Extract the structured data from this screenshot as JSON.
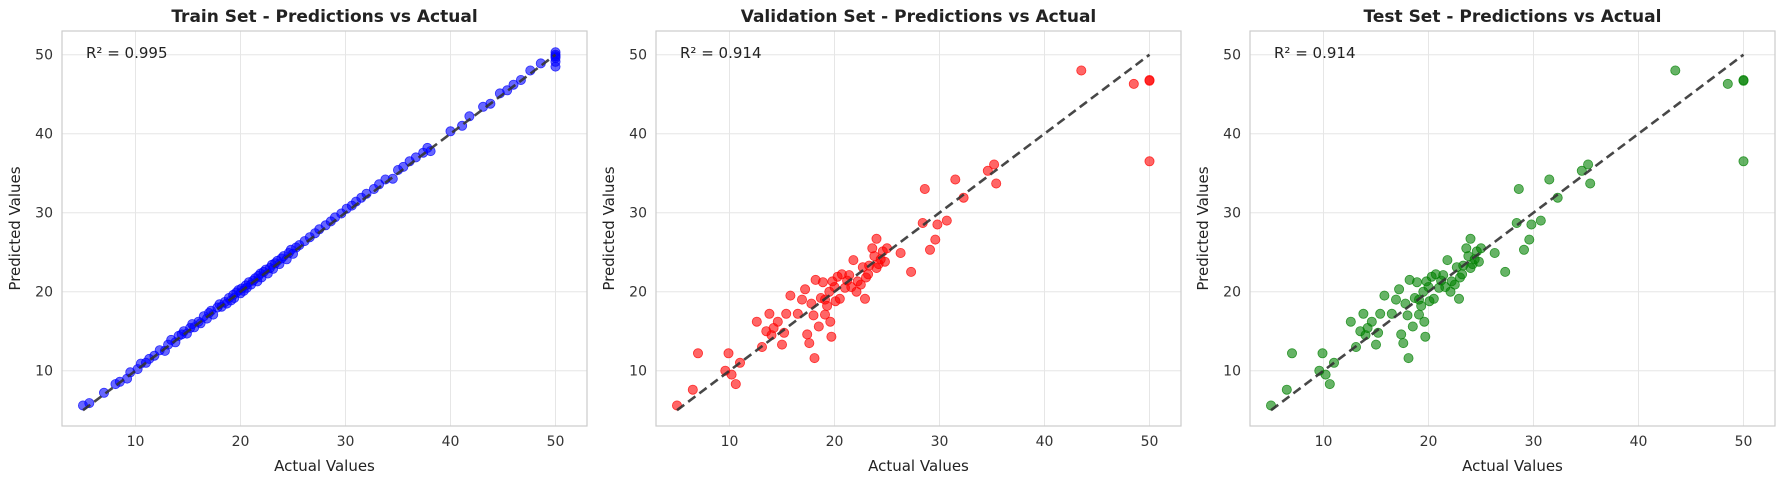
{
  "chart_data": [
    {
      "type": "scatter",
      "title": "Train Set - Predictions vs Actual",
      "xlabel": "Actual Values",
      "ylabel": "Predicted Values",
      "annotation": "R² = 0.995",
      "xlim": [
        3,
        53
      ],
      "ylim": [
        3,
        53
      ],
      "xticks": [
        10,
        20,
        30,
        40,
        50
      ],
      "yticks": [
        10,
        20,
        30,
        40,
        50
      ],
      "grid": true,
      "point_color": "#0000ff",
      "reference_line": {
        "from": [
          5,
          5
        ],
        "to": [
          50,
          50
        ],
        "style": "dashed",
        "color": "#333333"
      },
      "points": [
        [
          5.0,
          5.6
        ],
        [
          5.6,
          5.9
        ],
        [
          7.0,
          7.2
        ],
        [
          8.1,
          8.3
        ],
        [
          8.5,
          8.6
        ],
        [
          9.2,
          9.0
        ],
        [
          9.5,
          9.8
        ],
        [
          10.2,
          10.2
        ],
        [
          10.5,
          10.9
        ],
        [
          11.0,
          11.0
        ],
        [
          11.3,
          11.5
        ],
        [
          11.8,
          11.9
        ],
        [
          12.3,
          12.6
        ],
        [
          12.8,
          12.5
        ],
        [
          13.1,
          13.3
        ],
        [
          13.4,
          13.9
        ],
        [
          13.8,
          13.6
        ],
        [
          14.1,
          14.4
        ],
        [
          14.4,
          14.6
        ],
        [
          14.6,
          15.0
        ],
        [
          14.9,
          14.7
        ],
        [
          15.2,
          15.4
        ],
        [
          15.4,
          15.9
        ],
        [
          15.6,
          15.5
        ],
        [
          16.0,
          16.2
        ],
        [
          16.2,
          16.0
        ],
        [
          16.5,
          16.9
        ],
        [
          16.8,
          16.6
        ],
        [
          17.0,
          17.3
        ],
        [
          17.2,
          17.6
        ],
        [
          17.4,
          17.1
        ],
        [
          17.8,
          18.0
        ],
        [
          18.0,
          18.4
        ],
        [
          18.2,
          18.1
        ],
        [
          18.5,
          18.7
        ],
        [
          18.7,
          18.5
        ],
        [
          18.9,
          19.2
        ],
        [
          19.1,
          18.9
        ],
        [
          19.3,
          19.6
        ],
        [
          19.4,
          19.2
        ],
        [
          19.6,
          19.9
        ],
        [
          19.8,
          20.2
        ],
        [
          20.0,
          19.8
        ],
        [
          20.1,
          20.4
        ],
        [
          20.3,
          20.1
        ],
        [
          20.5,
          20.8
        ],
        [
          20.6,
          20.5
        ],
        [
          20.8,
          21.2
        ],
        [
          21.0,
          20.9
        ],
        [
          21.2,
          21.4
        ],
        [
          21.4,
          21.7
        ],
        [
          21.6,
          21.3
        ],
        [
          21.7,
          22.0
        ],
        [
          21.9,
          22.3
        ],
        [
          22.0,
          21.8
        ],
        [
          22.2,
          22.5
        ],
        [
          22.4,
          22.8
        ],
        [
          22.6,
          22.3
        ],
        [
          22.8,
          23.0
        ],
        [
          23.0,
          23.4
        ],
        [
          23.1,
          22.9
        ],
        [
          23.3,
          23.6
        ],
        [
          23.5,
          23.9
        ],
        [
          23.7,
          23.5
        ],
        [
          23.9,
          24.2
        ],
        [
          24.1,
          24.5
        ],
        [
          24.4,
          24.1
        ],
        [
          24.6,
          24.9
        ],
        [
          24.8,
          25.3
        ],
        [
          25.0,
          24.8
        ],
        [
          25.3,
          25.6
        ],
        [
          25.6,
          25.9
        ],
        [
          26.1,
          26.4
        ],
        [
          26.6,
          26.9
        ],
        [
          27.1,
          27.4
        ],
        [
          27.5,
          27.9
        ],
        [
          28.1,
          28.4
        ],
        [
          28.6,
          28.9
        ],
        [
          29.0,
          29.4
        ],
        [
          29.6,
          29.9
        ],
        [
          30.1,
          30.5
        ],
        [
          30.6,
          30.9
        ],
        [
          31.0,
          31.4
        ],
        [
          31.5,
          31.9
        ],
        [
          32.0,
          32.4
        ],
        [
          32.7,
          33.0
        ],
        [
          33.2,
          33.6
        ],
        [
          33.8,
          34.2
        ],
        [
          34.5,
          34.3
        ],
        [
          35.0,
          35.4
        ],
        [
          35.5,
          35.8
        ],
        [
          36.1,
          36.5
        ],
        [
          36.7,
          37.0
        ],
        [
          37.4,
          37.6
        ],
        [
          37.8,
          38.2
        ],
        [
          38.1,
          37.8
        ],
        [
          40.0,
          40.3
        ],
        [
          41.1,
          41.0
        ],
        [
          41.8,
          42.2
        ],
        [
          43.1,
          43.4
        ],
        [
          43.8,
          43.8
        ],
        [
          44.7,
          45.1
        ],
        [
          45.4,
          45.5
        ],
        [
          46.0,
          46.2
        ],
        [
          46.7,
          46.8
        ],
        [
          47.6,
          48.0
        ],
        [
          48.6,
          48.9
        ],
        [
          50.0,
          50.3
        ],
        [
          50.0,
          49.6
        ],
        [
          50.0,
          49.1
        ],
        [
          50.0,
          48.5
        ],
        [
          50.0,
          50.0
        ],
        [
          50.0,
          49.8
        ]
      ]
    },
    {
      "type": "scatter",
      "title": "Validation Set - Predictions vs Actual",
      "xlabel": "Actual Values",
      "ylabel": "Predicted Values",
      "annotation": "R² = 0.914",
      "xlim": [
        3,
        53
      ],
      "ylim": [
        3,
        53
      ],
      "xticks": [
        10,
        20,
        30,
        40,
        50
      ],
      "yticks": [
        10,
        20,
        30,
        40,
        50
      ],
      "grid": true,
      "point_color": "#ff0000",
      "reference_line": {
        "from": [
          5,
          5
        ],
        "to": [
          50,
          50
        ],
        "style": "dashed",
        "color": "#333333"
      },
      "points": [
        [
          5.0,
          5.6
        ],
        [
          6.5,
          7.6
        ],
        [
          7.0,
          12.2
        ],
        [
          9.6,
          10.0
        ],
        [
          9.9,
          12.2
        ],
        [
          10.2,
          9.5
        ],
        [
          10.6,
          8.3
        ],
        [
          11.0,
          11.0
        ],
        [
          12.6,
          16.2
        ],
        [
          13.1,
          13.0
        ],
        [
          13.5,
          15.0
        ],
        [
          13.8,
          17.2
        ],
        [
          14.0,
          14.5
        ],
        [
          14.2,
          15.4
        ],
        [
          14.6,
          16.2
        ],
        [
          15.0,
          13.3
        ],
        [
          15.2,
          14.8
        ],
        [
          15.4,
          17.2
        ],
        [
          15.8,
          19.5
        ],
        [
          16.5,
          17.2
        ],
        [
          16.9,
          19.0
        ],
        [
          17.2,
          20.3
        ],
        [
          17.4,
          14.6
        ],
        [
          17.6,
          13.5
        ],
        [
          17.8,
          18.5
        ],
        [
          18.0,
          17.0
        ],
        [
          18.1,
          11.6
        ],
        [
          18.2,
          21.5
        ],
        [
          18.5,
          15.6
        ],
        [
          18.7,
          19.2
        ],
        [
          18.9,
          21.2
        ],
        [
          19.1,
          17.1
        ],
        [
          19.1,
          19.0
        ],
        [
          19.3,
          18.2
        ],
        [
          19.5,
          20.0
        ],
        [
          19.6,
          16.2
        ],
        [
          19.7,
          14.3
        ],
        [
          19.8,
          21.3
        ],
        [
          20.0,
          20.6
        ],
        [
          20.1,
          18.8
        ],
        [
          20.3,
          21.9
        ],
        [
          20.5,
          19.1
        ],
        [
          20.7,
          22.2
        ],
        [
          21.0,
          20.5
        ],
        [
          21.2,
          21.4
        ],
        [
          21.4,
          22.1
        ],
        [
          21.6,
          20.6
        ],
        [
          21.8,
          24.0
        ],
        [
          22.1,
          20.0
        ],
        [
          22.2,
          21.3
        ],
        [
          22.5,
          20.9
        ],
        [
          22.7,
          23.1
        ],
        [
          22.9,
          19.1
        ],
        [
          23.0,
          21.8
        ],
        [
          23.2,
          22.2
        ],
        [
          23.3,
          23.3
        ],
        [
          23.6,
          25.5
        ],
        [
          23.8,
          24.5
        ],
        [
          24.0,
          23.0
        ],
        [
          24.0,
          26.7
        ],
        [
          24.2,
          23.5
        ],
        [
          24.4,
          24.1
        ],
        [
          24.6,
          25.1
        ],
        [
          24.8,
          23.8
        ],
        [
          25.0,
          25.5
        ],
        [
          26.3,
          24.9
        ],
        [
          27.3,
          22.5
        ],
        [
          28.4,
          28.7
        ],
        [
          28.6,
          33.0
        ],
        [
          29.1,
          25.3
        ],
        [
          29.6,
          26.6
        ],
        [
          29.8,
          28.5
        ],
        [
          30.7,
          29.0
        ],
        [
          31.5,
          34.2
        ],
        [
          32.3,
          31.9
        ],
        [
          34.6,
          35.3
        ],
        [
          35.2,
          36.1
        ],
        [
          35.4,
          33.7
        ],
        [
          43.5,
          48.0
        ],
        [
          48.5,
          46.3
        ],
        [
          50.0,
          46.7
        ],
        [
          50.0,
          46.8
        ],
        [
          50.0,
          36.5
        ]
      ]
    },
    {
      "type": "scatter",
      "title": "Test Set - Predictions vs Actual",
      "xlabel": "Actual Values",
      "ylabel": "Predicted Values",
      "annotation": "R² = 0.914",
      "xlim": [
        3,
        53
      ],
      "ylim": [
        3,
        53
      ],
      "xticks": [
        10,
        20,
        30,
        40,
        50
      ],
      "yticks": [
        10,
        20,
        30,
        40,
        50
      ],
      "grid": true,
      "point_color": "#008000",
      "reference_line": {
        "from": [
          5,
          5
        ],
        "to": [
          50,
          50
        ],
        "style": "dashed",
        "color": "#333333"
      },
      "points": [
        [
          5.0,
          5.6
        ],
        [
          6.5,
          7.6
        ],
        [
          7.0,
          12.2
        ],
        [
          9.6,
          10.0
        ],
        [
          9.9,
          12.2
        ],
        [
          10.2,
          9.5
        ],
        [
          10.6,
          8.3
        ],
        [
          11.0,
          11.0
        ],
        [
          12.6,
          16.2
        ],
        [
          13.1,
          13.0
        ],
        [
          13.5,
          15.0
        ],
        [
          13.8,
          17.2
        ],
        [
          14.0,
          14.5
        ],
        [
          14.2,
          15.4
        ],
        [
          14.6,
          16.2
        ],
        [
          15.0,
          13.3
        ],
        [
          15.2,
          14.8
        ],
        [
          15.4,
          17.2
        ],
        [
          15.8,
          19.5
        ],
        [
          16.5,
          17.2
        ],
        [
          16.9,
          19.0
        ],
        [
          17.2,
          20.3
        ],
        [
          17.4,
          14.6
        ],
        [
          17.6,
          13.5
        ],
        [
          17.8,
          18.5
        ],
        [
          18.0,
          17.0
        ],
        [
          18.1,
          11.6
        ],
        [
          18.2,
          21.5
        ],
        [
          18.5,
          15.6
        ],
        [
          18.7,
          19.2
        ],
        [
          18.9,
          21.2
        ],
        [
          19.1,
          17.1
        ],
        [
          19.1,
          19.0
        ],
        [
          19.3,
          18.2
        ],
        [
          19.5,
          20.0
        ],
        [
          19.6,
          16.2
        ],
        [
          19.7,
          14.3
        ],
        [
          19.8,
          21.3
        ],
        [
          20.0,
          20.6
        ],
        [
          20.1,
          18.8
        ],
        [
          20.3,
          21.9
        ],
        [
          20.5,
          19.1
        ],
        [
          20.7,
          22.2
        ],
        [
          21.0,
          20.5
        ],
        [
          21.2,
          21.4
        ],
        [
          21.4,
          22.1
        ],
        [
          21.6,
          20.6
        ],
        [
          21.8,
          24.0
        ],
        [
          22.1,
          20.0
        ],
        [
          22.2,
          21.3
        ],
        [
          22.5,
          20.9
        ],
        [
          22.7,
          23.1
        ],
        [
          22.9,
          19.1
        ],
        [
          23.0,
          21.8
        ],
        [
          23.2,
          22.2
        ],
        [
          23.3,
          23.3
        ],
        [
          23.6,
          25.5
        ],
        [
          23.8,
          24.5
        ],
        [
          24.0,
          23.0
        ],
        [
          24.0,
          26.7
        ],
        [
          24.2,
          23.5
        ],
        [
          24.4,
          24.1
        ],
        [
          24.6,
          25.1
        ],
        [
          24.8,
          23.8
        ],
        [
          25.0,
          25.5
        ],
        [
          26.3,
          24.9
        ],
        [
          27.3,
          22.5
        ],
        [
          28.4,
          28.7
        ],
        [
          28.6,
          33.0
        ],
        [
          29.1,
          25.3
        ],
        [
          29.6,
          26.6
        ],
        [
          29.8,
          28.5
        ],
        [
          30.7,
          29.0
        ],
        [
          31.5,
          34.2
        ],
        [
          32.3,
          31.9
        ],
        [
          34.6,
          35.3
        ],
        [
          35.2,
          36.1
        ],
        [
          35.4,
          33.7
        ],
        [
          43.5,
          48.0
        ],
        [
          48.5,
          46.3
        ],
        [
          50.0,
          46.7
        ],
        [
          50.0,
          46.8
        ],
        [
          50.0,
          36.5
        ]
      ]
    }
  ]
}
